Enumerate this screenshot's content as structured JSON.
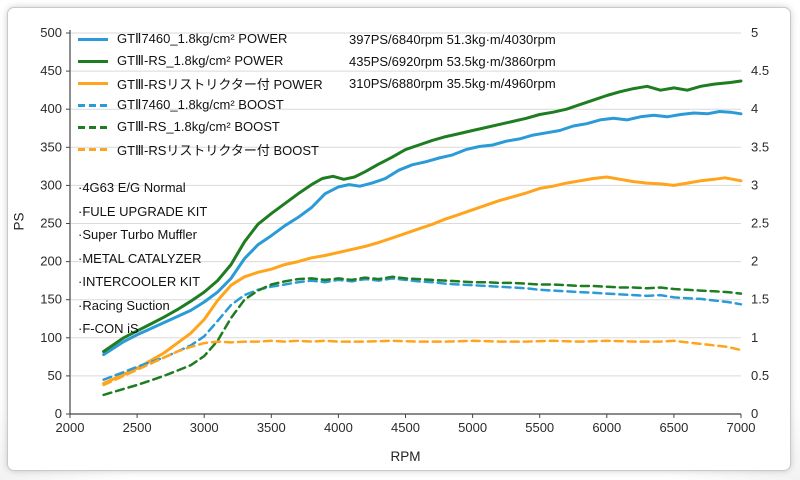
{
  "axes": {
    "xlabel": "RPM",
    "ylabel": "PS"
  },
  "legend": {
    "position": "top-left",
    "items": [
      {
        "label": "GTⅡ7460_1.8kg/cm² POWER",
        "stats": "397PS/6840rpm 51.3kg·m/4030rpm",
        "color": "#2b9bd7",
        "dash": false
      },
      {
        "label": "GTⅢ-RS_1.8kg/cm² POWER",
        "stats": "435PS/6920rpm 53.5kg·m/3860rpm",
        "color": "#1e7d20",
        "dash": false
      },
      {
        "label": "GTⅢ-RSリストリクター付 POWER",
        "stats": "310PS/6880rpm 35.5kg·m/4960rpm",
        "color": "#ffa41c",
        "dash": false
      },
      {
        "label": "GTⅡ7460_1.8kg/cm² BOOST",
        "stats": "",
        "color": "#2b9bd7",
        "dash": true
      },
      {
        "label": "GTⅢ-RS_1.8kg/cm² BOOST",
        "stats": "",
        "color": "#1e7d20",
        "dash": true
      },
      {
        "label": "GTⅢ-RSリストリクター付 BOOST",
        "stats": "",
        "color": "#ffa41c",
        "dash": true
      }
    ]
  },
  "mods": {
    "items": [
      "·4G63 E/G Normal",
      "·FULE UPGRADE KIT",
      "·Super Turbo Muffler",
      "·METAL CATALYZER",
      "·INTERCOOLER KIT",
      "·Racing Suction",
      "·F-CON iS"
    ]
  },
  "chart_data": {
    "type": "line",
    "title": "",
    "xlabel": "RPM",
    "ylabel": "PS",
    "ylabel_right": "",
    "grid": "horizontal-only",
    "legend_position": "top-left",
    "x_range": [
      2000,
      7000
    ],
    "x_ticks": [
      2000,
      2500,
      3000,
      3500,
      4000,
      4500,
      5000,
      5500,
      6000,
      6500,
      7000
    ],
    "y_left_range": [
      0,
      500
    ],
    "y_left_ticks": [
      0,
      50,
      100,
      150,
      200,
      250,
      300,
      350,
      400,
      450,
      500
    ],
    "y_right_range": [
      0,
      5
    ],
    "y_right_ticks": [
      0,
      0.5,
      1,
      1.5,
      2,
      2.5,
      3,
      3.5,
      4,
      4.5,
      5
    ],
    "series": [
      {
        "id": "gt2-7460-power-curve",
        "name": "GTⅡ7460_1.8kg/cm² POWER",
        "axis": "left",
        "dash": false,
        "color": "#2b9bd7",
        "points": [
          [
            2250,
            78
          ],
          [
            2400,
            95
          ],
          [
            2500,
            104
          ],
          [
            2600,
            112
          ],
          [
            2700,
            120
          ],
          [
            2800,
            128
          ],
          [
            2900,
            136
          ],
          [
            3000,
            147
          ],
          [
            3100,
            160
          ],
          [
            3200,
            178
          ],
          [
            3300,
            204
          ],
          [
            3400,
            222
          ],
          [
            3500,
            234
          ],
          [
            3600,
            247
          ],
          [
            3700,
            258
          ],
          [
            3800,
            271
          ],
          [
            3900,
            289
          ],
          [
            4000,
            298
          ],
          [
            4080,
            301
          ],
          [
            4160,
            299
          ],
          [
            4250,
            303
          ],
          [
            4350,
            309
          ],
          [
            4450,
            320
          ],
          [
            4550,
            327
          ],
          [
            4650,
            331
          ],
          [
            4750,
            336
          ],
          [
            4850,
            340
          ],
          [
            4950,
            347
          ],
          [
            5050,
            351
          ],
          [
            5150,
            353
          ],
          [
            5250,
            358
          ],
          [
            5350,
            361
          ],
          [
            5450,
            366
          ],
          [
            5550,
            369
          ],
          [
            5650,
            372
          ],
          [
            5750,
            378
          ],
          [
            5850,
            381
          ],
          [
            5950,
            386
          ],
          [
            6050,
            388
          ],
          [
            6150,
            386
          ],
          [
            6250,
            390
          ],
          [
            6350,
            392
          ],
          [
            6450,
            390
          ],
          [
            6550,
            393
          ],
          [
            6650,
            395
          ],
          [
            6750,
            394
          ],
          [
            6840,
            397
          ],
          [
            6920,
            396
          ],
          [
            7000,
            394
          ]
        ]
      },
      {
        "id": "gt3-rs-power-curve",
        "name": "GTⅢ-RS_1.8kg/cm² POWER",
        "axis": "left",
        "dash": false,
        "color": "#1e7d20",
        "points": [
          [
            2250,
            82
          ],
          [
            2400,
            100
          ],
          [
            2500,
            109
          ],
          [
            2600,
            118
          ],
          [
            2700,
            127
          ],
          [
            2800,
            137
          ],
          [
            2900,
            148
          ],
          [
            3000,
            160
          ],
          [
            3100,
            175
          ],
          [
            3200,
            196
          ],
          [
            3300,
            226
          ],
          [
            3400,
            249
          ],
          [
            3500,
            263
          ],
          [
            3600,
            276
          ],
          [
            3700,
            289
          ],
          [
            3800,
            301
          ],
          [
            3880,
            309
          ],
          [
            3960,
            312
          ],
          [
            4040,
            308
          ],
          [
            4120,
            311
          ],
          [
            4200,
            318
          ],
          [
            4300,
            328
          ],
          [
            4400,
            337
          ],
          [
            4500,
            347
          ],
          [
            4600,
            353
          ],
          [
            4700,
            359
          ],
          [
            4800,
            364
          ],
          [
            4900,
            368
          ],
          [
            5000,
            372
          ],
          [
            5100,
            376
          ],
          [
            5200,
            380
          ],
          [
            5300,
            384
          ],
          [
            5400,
            388
          ],
          [
            5500,
            393
          ],
          [
            5600,
            396
          ],
          [
            5700,
            400
          ],
          [
            5800,
            406
          ],
          [
            5900,
            412
          ],
          [
            6000,
            418
          ],
          [
            6100,
            423
          ],
          [
            6200,
            427
          ],
          [
            6300,
            430
          ],
          [
            6400,
            425
          ],
          [
            6500,
            428
          ],
          [
            6600,
            425
          ],
          [
            6700,
            430
          ],
          [
            6800,
            433
          ],
          [
            6920,
            435
          ],
          [
            7000,
            437
          ]
        ]
      },
      {
        "id": "gt3-rs-restrictor-power-curve",
        "name": "GTⅢ-RSリストリクター付 POWER",
        "axis": "left",
        "dash": false,
        "color": "#ffa41c",
        "points": [
          [
            2250,
            40
          ],
          [
            2400,
            52
          ],
          [
            2500,
            60
          ],
          [
            2600,
            70
          ],
          [
            2700,
            80
          ],
          [
            2800,
            93
          ],
          [
            2900,
            106
          ],
          [
            3000,
            124
          ],
          [
            3100,
            149
          ],
          [
            3200,
            169
          ],
          [
            3300,
            180
          ],
          [
            3400,
            186
          ],
          [
            3500,
            190
          ],
          [
            3600,
            196
          ],
          [
            3700,
            200
          ],
          [
            3800,
            205
          ],
          [
            3900,
            208
          ],
          [
            4000,
            212
          ],
          [
            4100,
            216
          ],
          [
            4200,
            220
          ],
          [
            4300,
            225
          ],
          [
            4400,
            231
          ],
          [
            4500,
            237
          ],
          [
            4600,
            243
          ],
          [
            4700,
            249
          ],
          [
            4800,
            256
          ],
          [
            4900,
            262
          ],
          [
            5000,
            268
          ],
          [
            5100,
            274
          ],
          [
            5200,
            280
          ],
          [
            5300,
            285
          ],
          [
            5400,
            290
          ],
          [
            5500,
            296
          ],
          [
            5600,
            299
          ],
          [
            5700,
            303
          ],
          [
            5800,
            306
          ],
          [
            5900,
            309
          ],
          [
            6000,
            311
          ],
          [
            6100,
            308
          ],
          [
            6200,
            305
          ],
          [
            6300,
            303
          ],
          [
            6400,
            302
          ],
          [
            6500,
            300
          ],
          [
            6600,
            303
          ],
          [
            6700,
            306
          ],
          [
            6800,
            308
          ],
          [
            6880,
            310
          ],
          [
            7000,
            306
          ]
        ]
      },
      {
        "id": "gt2-7460-boost-curve",
        "name": "GTⅡ7460_1.8kg/cm² BOOST",
        "axis": "right",
        "dash": true,
        "color": "#2b9bd7",
        "points": [
          [
            2250,
            0.45
          ],
          [
            2400,
            0.55
          ],
          [
            2500,
            0.62
          ],
          [
            2600,
            0.68
          ],
          [
            2700,
            0.74
          ],
          [
            2800,
            0.82
          ],
          [
            2900,
            0.9
          ],
          [
            3000,
            1.02
          ],
          [
            3100,
            1.22
          ],
          [
            3200,
            1.43
          ],
          [
            3300,
            1.56
          ],
          [
            3400,
            1.63
          ],
          [
            3500,
            1.67
          ],
          [
            3600,
            1.7
          ],
          [
            3700,
            1.73
          ],
          [
            3800,
            1.75
          ],
          [
            3900,
            1.73
          ],
          [
            4000,
            1.76
          ],
          [
            4100,
            1.74
          ],
          [
            4200,
            1.77
          ],
          [
            4300,
            1.75
          ],
          [
            4400,
            1.78
          ],
          [
            4500,
            1.76
          ],
          [
            4600,
            1.74
          ],
          [
            4700,
            1.73
          ],
          [
            4800,
            1.71
          ],
          [
            4900,
            1.7
          ],
          [
            5000,
            1.69
          ],
          [
            5100,
            1.68
          ],
          [
            5200,
            1.67
          ],
          [
            5300,
            1.66
          ],
          [
            5400,
            1.65
          ],
          [
            5500,
            1.63
          ],
          [
            5600,
            1.62
          ],
          [
            5700,
            1.61
          ],
          [
            5800,
            1.6
          ],
          [
            5900,
            1.59
          ],
          [
            6000,
            1.58
          ],
          [
            6100,
            1.57
          ],
          [
            6200,
            1.56
          ],
          [
            6300,
            1.55
          ],
          [
            6400,
            1.56
          ],
          [
            6500,
            1.53
          ],
          [
            6600,
            1.52
          ],
          [
            6700,
            1.51
          ],
          [
            6800,
            1.49
          ],
          [
            6900,
            1.47
          ],
          [
            7000,
            1.44
          ]
        ]
      },
      {
        "id": "gt3-rs-boost-curve",
        "name": "GTⅢ-RS_1.8kg/cm² BOOST",
        "axis": "right",
        "dash": true,
        "color": "#1e7d20",
        "points": [
          [
            2250,
            0.25
          ],
          [
            2400,
            0.33
          ],
          [
            2500,
            0.38
          ],
          [
            2600,
            0.44
          ],
          [
            2700,
            0.5
          ],
          [
            2800,
            0.57
          ],
          [
            2900,
            0.64
          ],
          [
            3000,
            0.76
          ],
          [
            3100,
            0.96
          ],
          [
            3200,
            1.26
          ],
          [
            3300,
            1.5
          ],
          [
            3400,
            1.62
          ],
          [
            3500,
            1.7
          ],
          [
            3600,
            1.74
          ],
          [
            3700,
            1.77
          ],
          [
            3800,
            1.78
          ],
          [
            3900,
            1.76
          ],
          [
            4000,
            1.78
          ],
          [
            4100,
            1.76
          ],
          [
            4200,
            1.79
          ],
          [
            4300,
            1.77
          ],
          [
            4400,
            1.8
          ],
          [
            4500,
            1.78
          ],
          [
            4600,
            1.77
          ],
          [
            4700,
            1.76
          ],
          [
            4800,
            1.75
          ],
          [
            4900,
            1.74
          ],
          [
            5000,
            1.73
          ],
          [
            5100,
            1.73
          ],
          [
            5200,
            1.72
          ],
          [
            5300,
            1.72
          ],
          [
            5400,
            1.71
          ],
          [
            5500,
            1.7
          ],
          [
            5600,
            1.7
          ],
          [
            5700,
            1.69
          ],
          [
            5800,
            1.68
          ],
          [
            5900,
            1.68
          ],
          [
            6000,
            1.67
          ],
          [
            6100,
            1.66
          ],
          [
            6200,
            1.66
          ],
          [
            6300,
            1.65
          ],
          [
            6400,
            1.66
          ],
          [
            6500,
            1.64
          ],
          [
            6600,
            1.63
          ],
          [
            6700,
            1.62
          ],
          [
            6800,
            1.61
          ],
          [
            6900,
            1.6
          ],
          [
            7000,
            1.58
          ]
        ]
      },
      {
        "id": "gt3-rs-restrictor-boost-curve",
        "name": "GTⅢ-RSリストリクター付 BOOST",
        "axis": "right",
        "dash": true,
        "color": "#ffa41c",
        "points": [
          [
            2250,
            0.38
          ],
          [
            2400,
            0.5
          ],
          [
            2500,
            0.58
          ],
          [
            2600,
            0.66
          ],
          [
            2700,
            0.74
          ],
          [
            2800,
            0.82
          ],
          [
            2900,
            0.88
          ],
          [
            3000,
            0.93
          ],
          [
            3100,
            0.95
          ],
          [
            3200,
            0.94
          ],
          [
            3300,
            0.95
          ],
          [
            3400,
            0.95
          ],
          [
            3500,
            0.96
          ],
          [
            3600,
            0.95
          ],
          [
            3700,
            0.96
          ],
          [
            3800,
            0.95
          ],
          [
            3900,
            0.96
          ],
          [
            4000,
            0.95
          ],
          [
            4200,
            0.95
          ],
          [
            4400,
            0.96
          ],
          [
            4600,
            0.95
          ],
          [
            4800,
            0.95
          ],
          [
            5000,
            0.96
          ],
          [
            5200,
            0.95
          ],
          [
            5400,
            0.95
          ],
          [
            5600,
            0.96
          ],
          [
            5800,
            0.95
          ],
          [
            6000,
            0.96
          ],
          [
            6200,
            0.95
          ],
          [
            6400,
            0.95
          ],
          [
            6500,
            0.96
          ],
          [
            6600,
            0.94
          ],
          [
            6700,
            0.92
          ],
          [
            6800,
            0.9
          ],
          [
            6900,
            0.88
          ],
          [
            7000,
            0.84
          ]
        ]
      }
    ]
  }
}
